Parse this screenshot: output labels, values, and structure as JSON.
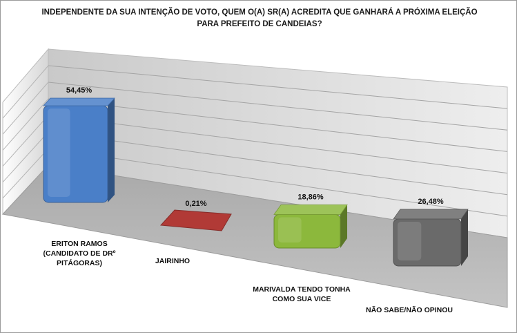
{
  "chart_data": {
    "type": "bar",
    "title_lines": [
      "INDEPENDENTE DA SUA INTENÇÃO DE VOTO, QUEM O(A) SR(A) ACREDITA QUE GANHARÁ A PRÓXIMA ELEIÇÃO",
      "PARA PREFEITO DE CANDEIAS?"
    ],
    "categories": [
      [
        "ERITON RAMOS",
        "(CANDIDATO DE DRº",
        "PITÁGORAS)"
      ],
      [
        "JAIRINHO"
      ],
      [
        "MARIVALDA TENDO TONHA",
        "COMO SUA VICE"
      ],
      [
        "NÃO SABE/NÃO OPINOU"
      ]
    ],
    "values": [
      54.45,
      0.21,
      18.86,
      26.48
    ],
    "value_labels": [
      "54,45%",
      "0,21%",
      "18,86%",
      "26,48%"
    ],
    "colors": [
      "#4a7fc8",
      "#b13a36",
      "#8cb83c",
      "#6a6a6a"
    ],
    "ylim": [
      0,
      70
    ],
    "grid": true,
    "style": "3d-column"
  }
}
